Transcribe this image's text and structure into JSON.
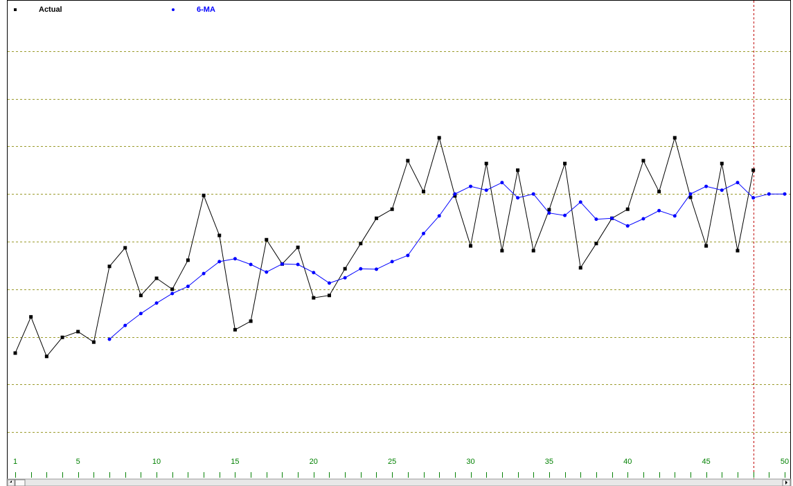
{
  "chart_data": {
    "type": "line",
    "x": [
      1,
      2,
      3,
      4,
      5,
      6,
      7,
      8,
      9,
      10,
      11,
      12,
      13,
      14,
      15,
      16,
      17,
      18,
      19,
      20,
      21,
      22,
      23,
      24,
      25,
      26,
      27,
      28,
      29,
      30,
      31,
      32,
      33,
      34,
      35,
      36,
      37,
      38,
      39,
      40,
      41,
      42,
      43,
      44,
      45,
      46,
      47,
      48,
      49,
      50
    ],
    "xlim": [
      1,
      50
    ],
    "xticks": [
      1,
      5,
      10,
      15,
      20,
      25,
      30,
      35,
      40,
      45,
      50
    ],
    "ylim": [
      0,
      10
    ],
    "grid_y": [
      1,
      2,
      3,
      4,
      5,
      6,
      7,
      8,
      9
    ],
    "vertical_line_x": 48,
    "series": [
      {
        "name": "Actual",
        "color": "#000000",
        "marker": "square",
        "values": [
          2.66,
          3.42,
          2.59,
          2.99,
          3.11,
          2.89,
          4.48,
          4.87,
          3.87,
          4.23,
          4.0,
          4.61,
          5.97,
          5.13,
          3.15,
          3.33,
          5.04,
          4.53,
          4.88,
          3.82,
          3.87,
          4.43,
          4.96,
          5.49,
          5.68,
          6.7,
          6.05,
          7.18,
          5.96,
          4.91,
          6.64,
          4.81,
          6.5,
          4.81,
          5.67,
          6.64,
          4.45,
          4.96,
          5.49,
          5.68,
          6.7,
          6.05,
          7.18,
          5.93,
          4.91,
          6.64,
          4.81,
          6.5,
          null,
          null
        ]
      },
      {
        "name": "6-MA",
        "color": "#0000ff",
        "marker": "circle",
        "values": [
          null,
          null,
          null,
          null,
          null,
          null,
          2.95,
          3.24,
          3.49,
          3.71,
          3.91,
          4.06,
          4.33,
          4.58,
          4.64,
          4.52,
          4.36,
          4.53,
          4.52,
          4.35,
          4.13,
          4.24,
          4.43,
          4.42,
          4.58,
          4.71,
          5.17,
          5.54,
          6.0,
          6.16,
          6.08,
          6.24,
          5.92,
          6.0,
          5.6,
          5.55,
          5.83,
          5.47,
          5.49,
          5.33,
          5.48,
          5.65,
          5.54,
          6.0,
          6.16,
          6.08,
          6.24,
          5.92,
          6.0,
          6.0
        ]
      }
    ]
  }
}
